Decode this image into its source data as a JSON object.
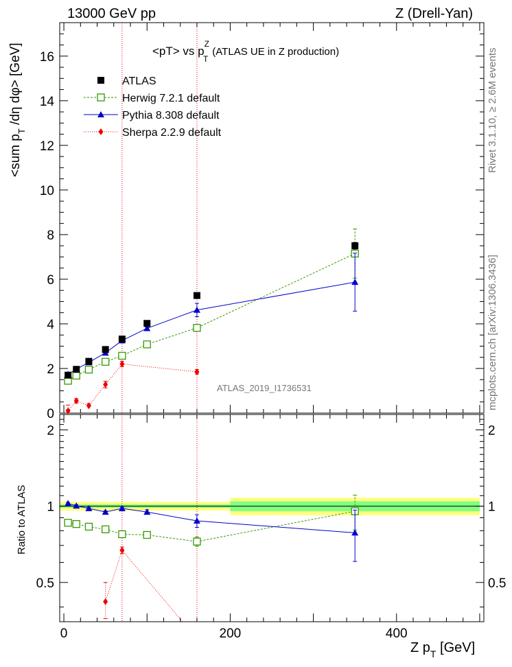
{
  "header": {
    "energy_label": "13000 GeV pp",
    "process_label": "Z (Drell-Yan)"
  },
  "plot_title": {
    "prefix": "<pT> vs p",
    "sup": "Z",
    "sub": "T",
    "suffix": "(ATLAS UE in Z production)"
  },
  "side_labels": {
    "rivet": "Rivet 3.1.10, ≥ 2.6M events",
    "mcplots": "mcplots.cern.ch [arXiv:1306.3436]"
  },
  "watermark": "ATLAS_2019_I1736531",
  "axes": {
    "y_main_label_parts": [
      "<sum p",
      "T",
      " /dη dφ> [GeV]"
    ],
    "y_ratio_label": "Ratio to ATLAS",
    "x_label_parts": [
      "Z p",
      "T",
      " [GeV]"
    ]
  },
  "legend": [
    {
      "name": "ATLAS",
      "color": "#000000",
      "marker": "square-filled"
    },
    {
      "name": "Herwig 7.2.1 default",
      "color": "#339900",
      "marker": "square-open"
    },
    {
      "name": "Pythia 8.308 default",
      "color": "#0000cc",
      "marker": "triangle"
    },
    {
      "name": "Sherpa 2.2.9 default",
      "color": "#ee0000",
      "marker": "diamond"
    }
  ],
  "chart_data": {
    "type": "scatter",
    "xlim": [
      -5,
      505
    ],
    "x_ticks": [
      0,
      200,
      400
    ],
    "main": {
      "ylim": [
        0,
        17.5
      ],
      "y_ticks": [
        0,
        2,
        4,
        6,
        8,
        10,
        12,
        14,
        16
      ],
      "x": [
        5,
        15,
        30,
        50,
        70,
        100,
        160,
        350
      ],
      "series": [
        {
          "name": "ATLAS",
          "values": [
            1.7,
            1.96,
            2.32,
            2.85,
            3.32,
            4.02,
            5.27,
            7.5
          ],
          "errors": [
            0.05,
            0.05,
            0.05,
            0.05,
            0.05,
            0.07,
            0.1,
            0.15
          ]
        },
        {
          "name": "Herwig 7.2.1 default",
          "values": [
            1.45,
            1.68,
            1.95,
            2.3,
            2.57,
            3.08,
            3.82,
            7.15
          ],
          "errors": [
            0.05,
            0.05,
            0.05,
            0.05,
            0.05,
            0.06,
            0.12,
            1.1
          ]
        },
        {
          "name": "Pythia 8.308 default",
          "values": [
            1.74,
            1.97,
            2.27,
            2.7,
            3.25,
            3.8,
            4.62,
            5.87
          ],
          "errors": [
            0.04,
            0.04,
            0.04,
            0.04,
            0.05,
            0.05,
            0.3,
            1.3
          ]
        },
        {
          "name": "Sherpa 2.2.9 default",
          "values": [
            0.1,
            0.55,
            0.33,
            1.28,
            2.2,
            null,
            1.85,
            null
          ],
          "errors": [
            0.05,
            0.1,
            0.1,
            0.15,
            0.12,
            0,
            0.1,
            0
          ]
        }
      ]
    },
    "ratio": {
      "ylim": [
        0.35,
        2.3
      ],
      "y_ticks": [
        0.5,
        1,
        2
      ],
      "y_tick_labels": [
        "0.5",
        "1",
        "2"
      ],
      "bands": [
        {
          "x": [
            -5,
            200
          ],
          "inner": [
            0.985,
            1.015
          ],
          "outer": [
            0.96,
            1.04
          ]
        },
        {
          "x": [
            200,
            500
          ],
          "inner": [
            0.955,
            1.045
          ],
          "outer": [
            0.92,
            1.08
          ]
        }
      ],
      "series": [
        {
          "name": "Herwig 7.2.1 default",
          "values": [
            0.86,
            0.85,
            0.83,
            0.81,
            0.775,
            0.77,
            0.725,
            0.955
          ],
          "errors": [
            0.02,
            0.02,
            0.02,
            0.02,
            0.02,
            0.02,
            0.03,
            0.15
          ]
        },
        {
          "name": "Pythia 8.308 default",
          "values": [
            1.025,
            1.003,
            0.98,
            0.948,
            0.98,
            0.948,
            0.875,
            0.785
          ],
          "errors": [
            0.01,
            0.01,
            0.01,
            0.01,
            0.01,
            0.02,
            0.05,
            0.18
          ]
        },
        {
          "name": "Sherpa 2.2.9 default",
          "values": [
            null,
            null,
            null,
            0.42,
            0.67,
            null,
            null,
            null
          ],
          "errors": [
            0,
            0,
            0,
            0.08,
            0.02,
            0,
            0,
            0
          ]
        }
      ],
      "sherpa_line_to": [
        160,
        0.3
      ]
    },
    "vertical_markers": [
      70,
      160
    ]
  }
}
